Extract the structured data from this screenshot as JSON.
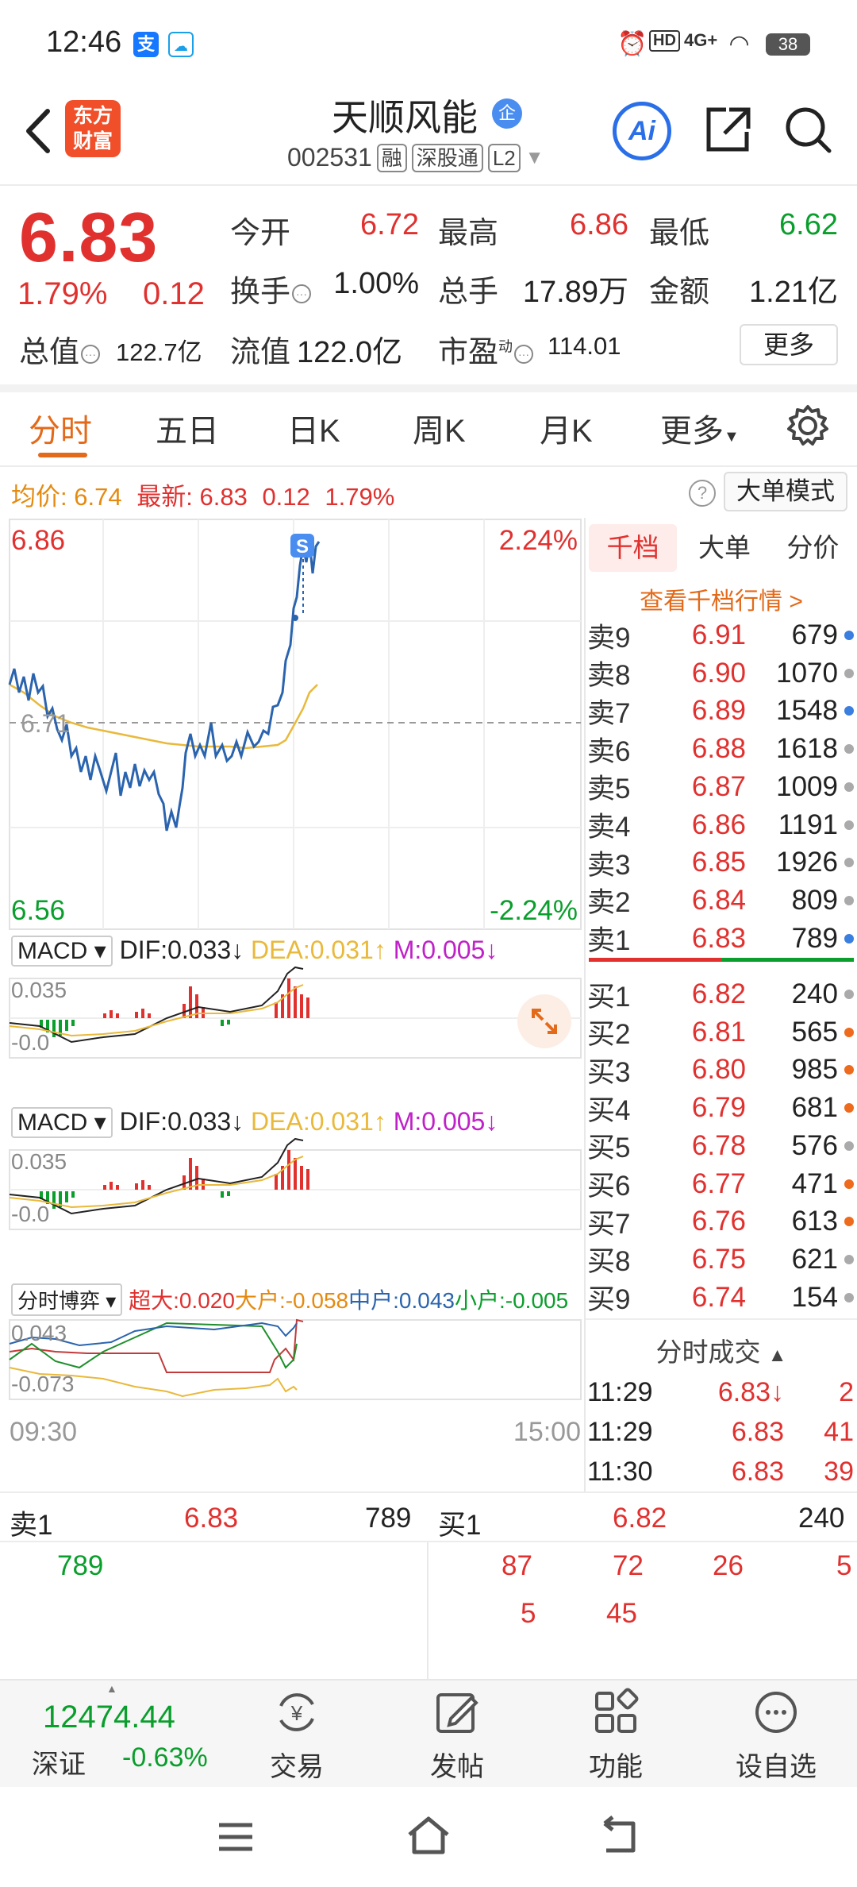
{
  "status": {
    "time": "12:46",
    "battery": "38",
    "network": "4G+"
  },
  "header": {
    "logo_line1": "东方",
    "logo_line2": "财富",
    "stock_name": "天顺风能",
    "badge": "企",
    "stock_code": "002531",
    "tag_margin": "融",
    "tag_connect": "深股通",
    "tag_level": "L2",
    "ai_label": "Ai"
  },
  "quote": {
    "price": "6.83",
    "pct": "1.79%",
    "change": "0.12",
    "open_label": "今开",
    "open": "6.72",
    "high_label": "最高",
    "high": "6.86",
    "low_label": "最低",
    "low": "6.62",
    "turnover_label": "换手",
    "turnover": "1.00%",
    "volume_label": "总手",
    "volume": "17.89万",
    "amount_label": "金额",
    "amount": "1.21亿",
    "mktcap_label": "总值",
    "mktcap": "122.7亿",
    "float_label": "流值",
    "float": "122.0亿",
    "pe_label": "市盈",
    "pe_sup": "动",
    "pe": "114.01",
    "more": "更多"
  },
  "tabs": [
    "分时",
    "五日",
    "日K",
    "周K",
    "月K",
    "更多"
  ],
  "avg_row": {
    "avg_label": "均价:",
    "avg": "6.74",
    "latest_label": "最新:",
    "latest": "6.83",
    "chg": "0.12",
    "pct": "1.79%"
  },
  "big_order_mode": "大单模式",
  "chart": {
    "y_top": "6.86",
    "y_top_pct": "2.24%",
    "y_mid": "6.71",
    "y_bottom": "6.56",
    "y_bottom_pct": "-2.24%",
    "marker": "S",
    "time_start": "09:30",
    "time_end": "15:00"
  },
  "macd1": {
    "name": "MACD",
    "dif": "DIF:0.033",
    "dea": "DEA:0.031",
    "m": "M:0.005",
    "top": "0.035",
    "bottom": "-0.0"
  },
  "macd2": {
    "name": "MACD",
    "dif": "DIF:0.033",
    "dea": "DEA:0.031",
    "m": "M:0.005",
    "top": "0.035",
    "bottom": "-0.0"
  },
  "fund": {
    "name": "分时博弈",
    "super": "超大:0.020",
    "large": "大户:-0.058",
    "mid": "中户:0.043",
    "small": "小户:-0.005",
    "top": "0.043",
    "bottom": "-0.073"
  },
  "orderbook": {
    "tabs": [
      "千档",
      "大单",
      "分价"
    ],
    "link": "查看千档行情 >",
    "asks": [
      {
        "label": "卖9",
        "price": "6.91",
        "vol": "679",
        "dot": "#3a7ee0"
      },
      {
        "label": "卖8",
        "price": "6.90",
        "vol": "1070",
        "dot": "#aaaaaa"
      },
      {
        "label": "卖7",
        "price": "6.89",
        "vol": "1548",
        "dot": "#3a7ee0"
      },
      {
        "label": "卖6",
        "price": "6.88",
        "vol": "1618",
        "dot": "#aaaaaa"
      },
      {
        "label": "卖5",
        "price": "6.87",
        "vol": "1009",
        "dot": "#aaaaaa"
      },
      {
        "label": "卖4",
        "price": "6.86",
        "vol": "1191",
        "dot": "#aaaaaa"
      },
      {
        "label": "卖3",
        "price": "6.85",
        "vol": "1926",
        "dot": "#aaaaaa"
      },
      {
        "label": "卖2",
        "price": "6.84",
        "vol": "809",
        "dot": "#aaaaaa"
      },
      {
        "label": "卖1",
        "price": "6.83",
        "vol": "789",
        "dot": "#3a7ee0"
      }
    ],
    "bids": [
      {
        "label": "买1",
        "price": "6.82",
        "vol": "240",
        "dot": "#aaaaaa"
      },
      {
        "label": "买2",
        "price": "6.81",
        "vol": "565",
        "dot": "#ee6a1c"
      },
      {
        "label": "买3",
        "price": "6.80",
        "vol": "985",
        "dot": "#ee6a1c"
      },
      {
        "label": "买4",
        "price": "6.79",
        "vol": "681",
        "dot": "#ee6a1c"
      },
      {
        "label": "买5",
        "price": "6.78",
        "vol": "576",
        "dot": "#aaaaaa"
      },
      {
        "label": "买6",
        "price": "6.77",
        "vol": "471",
        "dot": "#ee6a1c"
      },
      {
        "label": "买7",
        "price": "6.76",
        "vol": "613",
        "dot": "#ee6a1c"
      },
      {
        "label": "买8",
        "price": "6.75",
        "vol": "621",
        "dot": "#aaaaaa"
      },
      {
        "label": "买9",
        "price": "6.74",
        "vol": "154",
        "dot": "#aaaaaa"
      }
    ]
  },
  "ticks": {
    "title": "分时成交",
    "rows": [
      {
        "time": "11:29",
        "price": "6.83↓",
        "vol": "2"
      },
      {
        "time": "11:29",
        "price": "6.83",
        "vol": "41"
      },
      {
        "time": "11:30",
        "price": "6.83",
        "vol": "39"
      }
    ]
  },
  "best_quote": {
    "sell_label": "卖1",
    "sell_price": "6.83",
    "sell_vol": "789",
    "buy_label": "买1",
    "buy_price": "6.82",
    "buy_vol": "240",
    "sell_queue": [
      "789"
    ],
    "buy_queue": [
      "87",
      "72",
      "26",
      "5",
      "5",
      "45"
    ]
  },
  "bottom": {
    "index_value": "12474.44",
    "index_name": "深证",
    "index_pct": "-0.63%",
    "items": [
      "交易",
      "发帖",
      "功能",
      "设自选"
    ]
  }
}
